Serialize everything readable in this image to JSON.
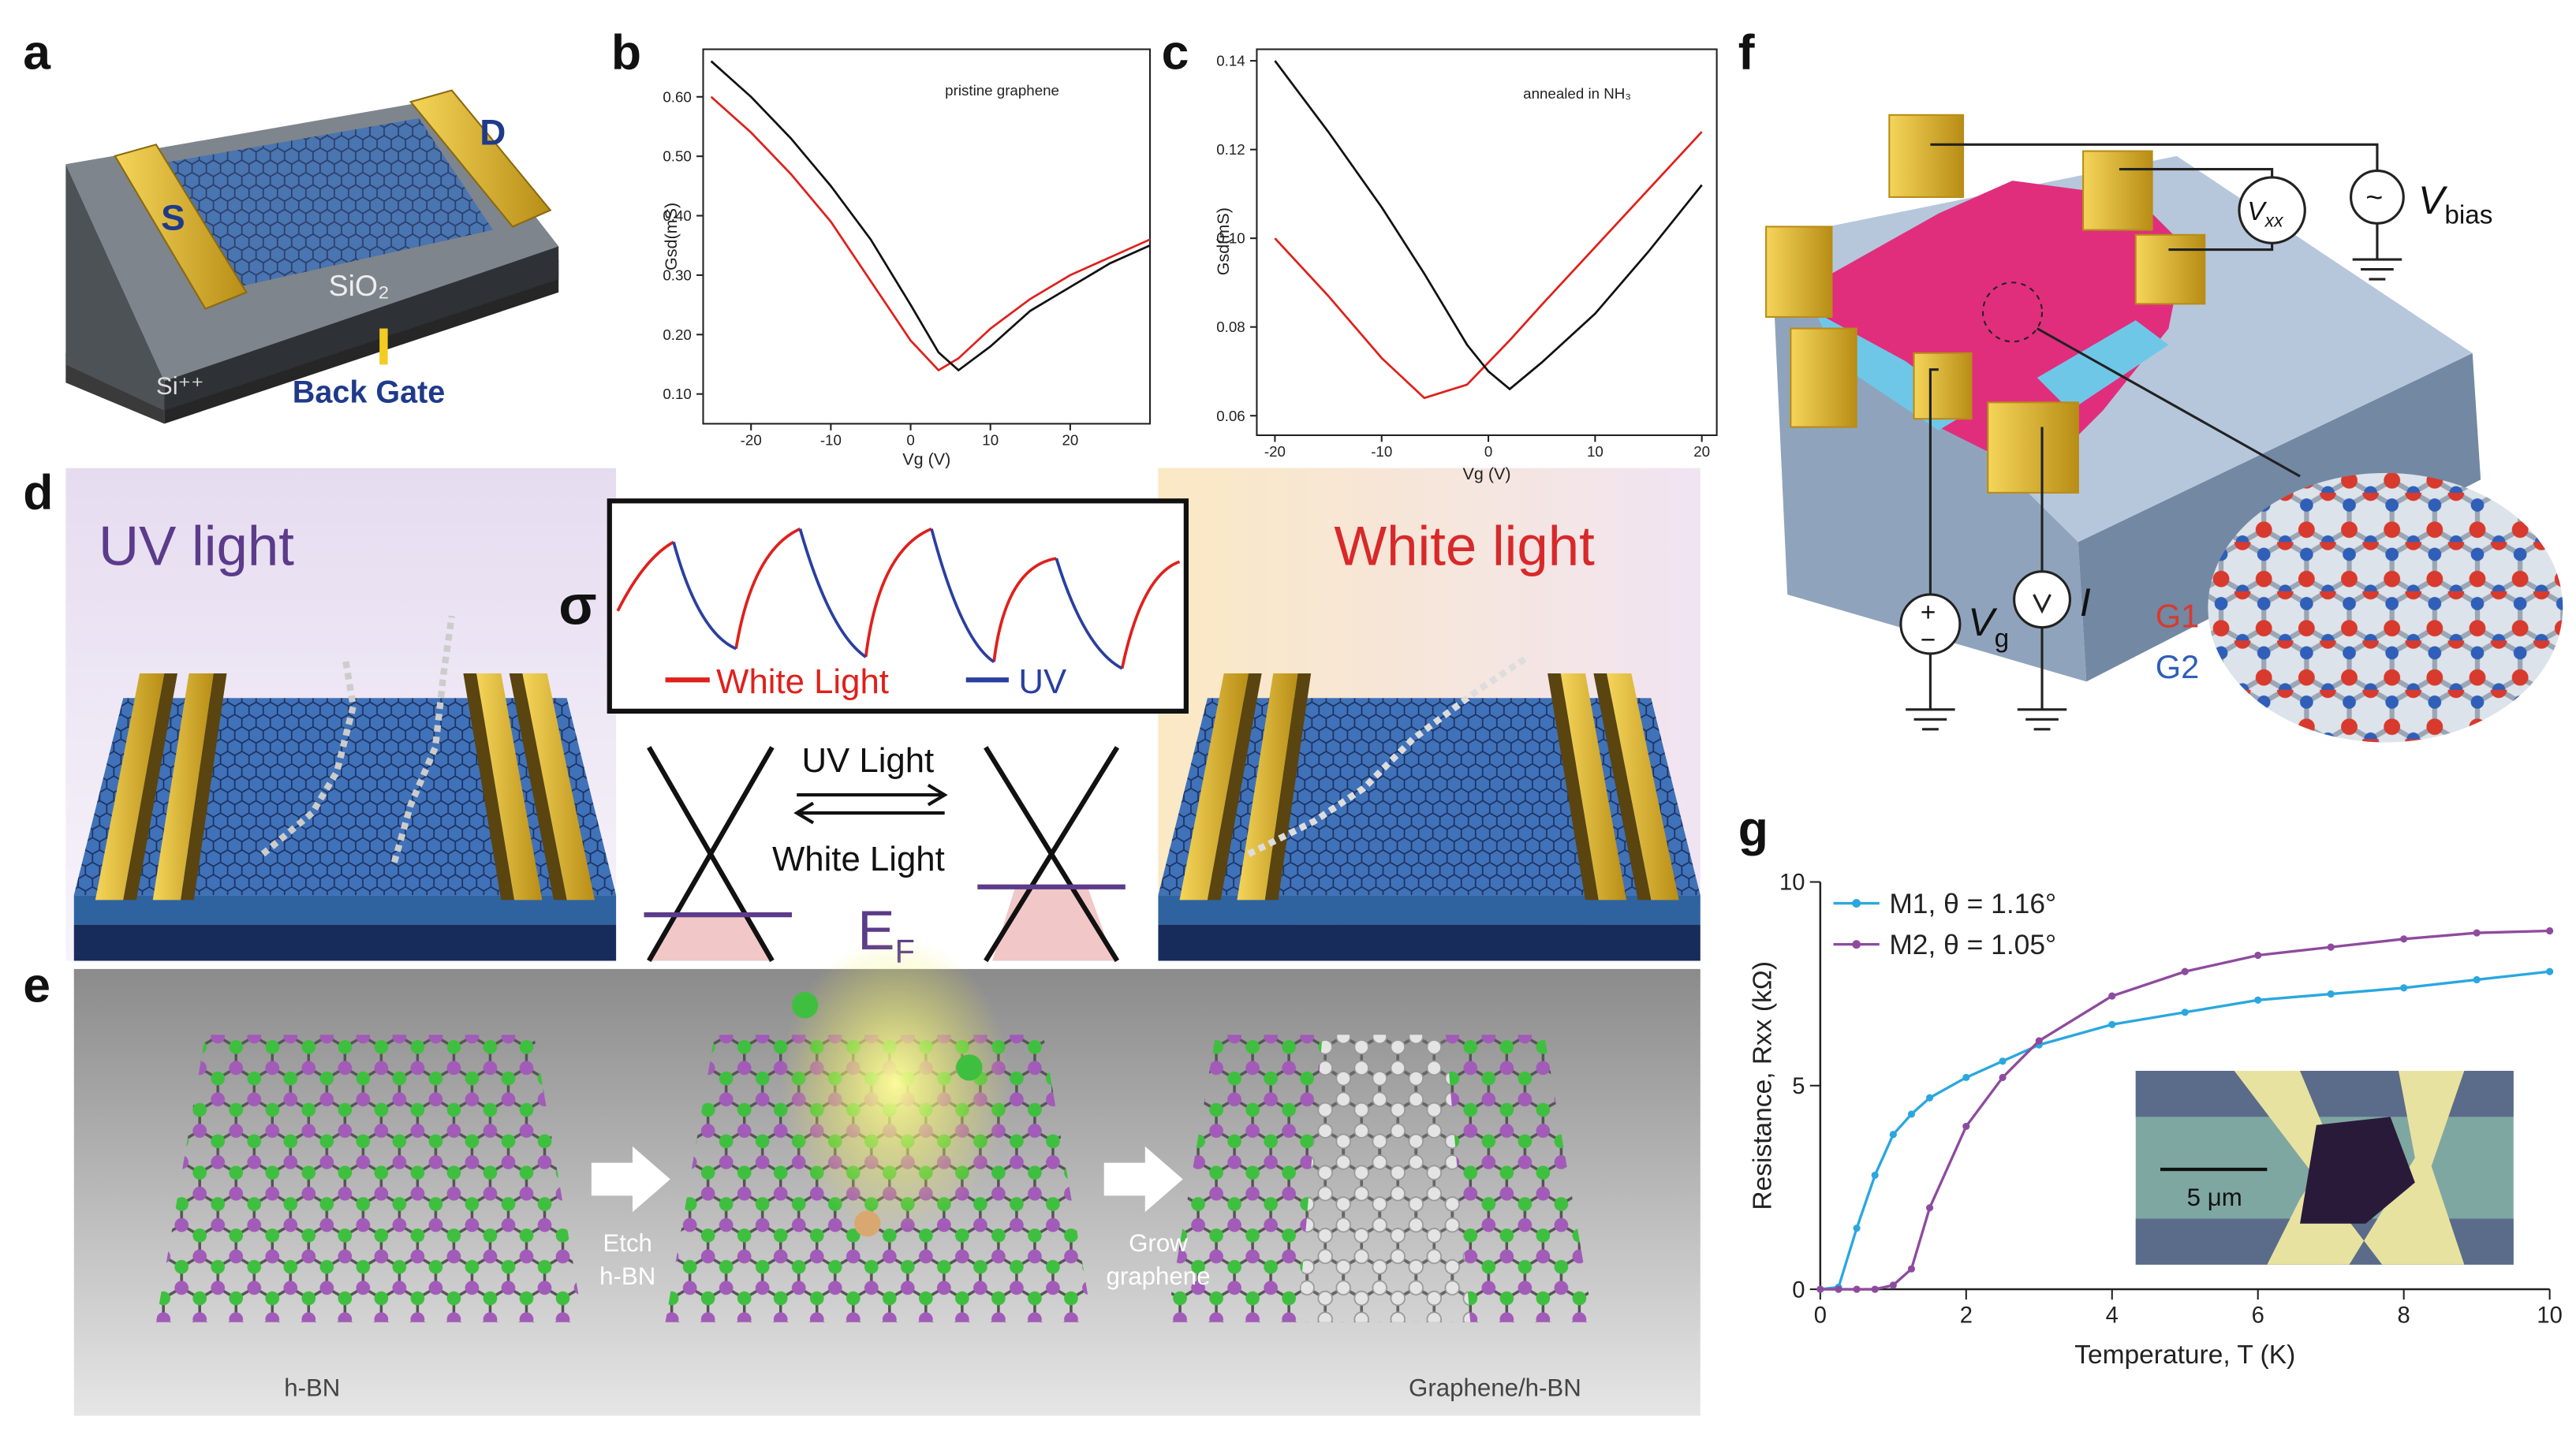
{
  "panel_labels": [
    "a",
    "b",
    "c",
    "d",
    "e",
    "f",
    "g"
  ],
  "panel_a": {
    "source": "S",
    "drain": "D",
    "oxide": "SiO₂",
    "substrate": "Si⁺⁺",
    "gate": "Back Gate"
  },
  "panel_d": {
    "left_title": "UV light",
    "right_title": "White light",
    "sigma": "σ",
    "legend_white": "White Light",
    "legend_uv": "UV",
    "arrow_top": "UV Light",
    "arrow_bottom": "White Light",
    "fermi": {
      "main": "E",
      "sub": "F"
    }
  },
  "panel_e": {
    "step1": [
      "Etch",
      "h-BN"
    ],
    "step2": [
      "Grow",
      "graphene"
    ],
    "left_caption": "h-BN",
    "right_caption": "Graphene/h-BN"
  },
  "panel_f": {
    "vxx": {
      "main": "V",
      "sub": "xx"
    },
    "vbias": {
      "main": "V",
      "sub": "bias"
    },
    "vg": {
      "main": "V",
      "sub": "g"
    },
    "current": "I",
    "plus": "+",
    "minus": "−",
    "source_symbol": "~",
    "g1": "G1",
    "g2": "G2"
  },
  "panel_g_inset": {
    "scale_bar": "5 μm"
  },
  "chart_data": [
    {
      "type": "line",
      "title": "pristine graphene",
      "xlabel": "Vg (V)",
      "ylabel": "Gsd(mS)",
      "x": [
        -25,
        -20,
        -15,
        -10,
        -5,
        0,
        3.5,
        6,
        10,
        15,
        20,
        25,
        30
      ],
      "series": [
        {
          "color": "#e0201b",
          "values": [
            0.6,
            0.54,
            0.47,
            0.39,
            0.29,
            0.19,
            0.14,
            0.16,
            0.21,
            0.26,
            0.3,
            0.33,
            0.36
          ]
        },
        {
          "color": "#111111",
          "values": [
            0.66,
            0.6,
            0.53,
            0.45,
            0.36,
            0.25,
            0.17,
            0.14,
            0.18,
            0.24,
            0.28,
            0.32,
            0.35
          ]
        }
      ],
      "xlim": [
        -26,
        30
      ],
      "ylim": [
        0.05,
        0.68
      ],
      "xticks": [
        -20,
        -10,
        0,
        10,
        20
      ],
      "yticks": [
        {
          "value": 0.1,
          "label": "0.10"
        },
        {
          "value": 0.2,
          "label": "0.20"
        },
        {
          "value": 0.3,
          "label": "0.30"
        },
        {
          "value": 0.4,
          "label": "0.40"
        },
        {
          "value": 0.5,
          "label": "0.50"
        },
        {
          "value": 0.6,
          "label": "0.60"
        }
      ],
      "frame": true,
      "markers": false
    },
    {
      "type": "line",
      "title": "annealed in NH₃",
      "xlabel": "Vg (V)",
      "ylabel": "Gsd(mS)",
      "x": [
        -20,
        -15,
        -10,
        -6,
        -2,
        0,
        2,
        5,
        10,
        15,
        20
      ],
      "series": [
        {
          "color": "#e0201b",
          "values": [
            0.1,
            0.087,
            0.073,
            0.064,
            0.067,
            0.072,
            0.077,
            0.085,
            0.098,
            0.111,
            0.124
          ]
        },
        {
          "color": "#111111",
          "values": [
            0.14,
            0.124,
            0.107,
            0.092,
            0.076,
            0.07,
            0.066,
            0.072,
            0.083,
            0.097,
            0.112
          ]
        }
      ],
      "xlim": [
        -21.7,
        21.4
      ],
      "ylim": [
        0.0556,
        0.1426
      ],
      "xticks": [
        -20,
        -10,
        0,
        10,
        20
      ],
      "yticks": [
        0.06,
        0.08,
        {
          "value": 0.1,
          "label": "0.10"
        },
        0.12,
        0.14
      ],
      "frame": true,
      "markers": false
    },
    {
      "type": "line",
      "xlabel": "Temperature, T (K)",
      "ylabel": "Resistance, Rxx (kΩ)",
      "x": [
        0,
        0.25,
        0.5,
        0.75,
        1,
        1.25,
        1.5,
        2,
        2.5,
        3,
        4,
        5,
        6,
        7,
        8,
        9,
        10
      ],
      "series": [
        {
          "name": "M1, θ = 1.16°",
          "color": "#2aa7df",
          "values": [
            0,
            0.05,
            1.5,
            2.8,
            3.8,
            4.3,
            4.7,
            5.2,
            5.6,
            6.0,
            6.5,
            6.8,
            7.1,
            7.25,
            7.4,
            7.6,
            7.8
          ]
        },
        {
          "name": "M2, θ = 1.05°",
          "color": "#8e4b9e",
          "values": [
            0,
            0,
            0,
            0,
            0.1,
            0.5,
            2.0,
            4.0,
            5.2,
            6.1,
            7.2,
            7.8,
            8.2,
            8.4,
            8.6,
            8.75,
            8.8
          ]
        }
      ],
      "xlim": [
        0,
        10
      ],
      "ylim": [
        0,
        10
      ],
      "xticks": [
        0,
        2,
        4,
        6,
        8,
        10
      ],
      "yticks": [
        0,
        5,
        10
      ],
      "frame": false,
      "markers": true
    }
  ]
}
